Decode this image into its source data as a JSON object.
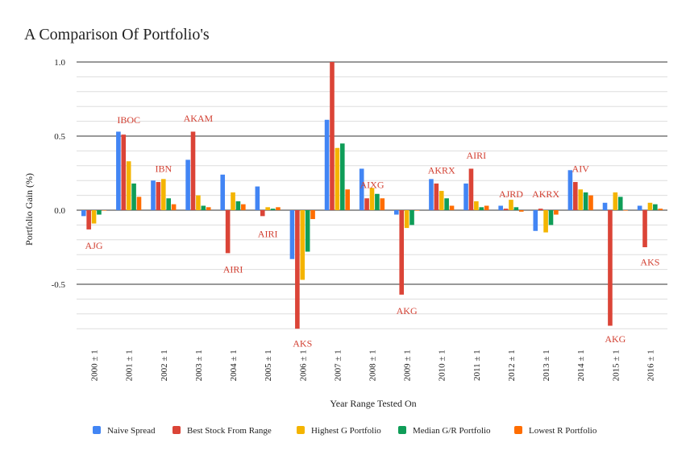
{
  "chart_data": {
    "type": "bar",
    "title": "A Comparison Of Portfolio's",
    "xlabel": "Year Range Tested On",
    "ylabel": "Portfolio Gain (%)",
    "ylim": [
      -0.8333,
      1.0
    ],
    "yticks": [
      1.0,
      0.5,
      0.0,
      -0.5
    ],
    "ytick_labels": [
      "1.0",
      "0.5",
      "0.0",
      "-0.5"
    ],
    "minor_gridlines": 5,
    "legend_position": "bottom",
    "categories": [
      "2000 ± 1",
      "2001 ± 1",
      "2002 ± 1",
      "2003 ± 1",
      "2004 ± 1",
      "2005 ± 1",
      "2006 ± 1",
      "2007 ± 1",
      "2008 ± 1",
      "2009 ± 1",
      "2010 ± 1",
      "2011 ± 1",
      "2012 ± 1",
      "2013 ± 1",
      "2014 ± 1",
      "2015 ± 1",
      "2016 ± 1"
    ],
    "series": [
      {
        "name": "Naive Spread",
        "color": "#4285f4",
        "values": [
          -0.04,
          0.53,
          0.2,
          0.34,
          0.24,
          0.16,
          -0.33,
          0.61,
          0.28,
          -0.03,
          0.21,
          0.18,
          0.03,
          -0.14,
          0.27,
          0.05,
          0.03
        ]
      },
      {
        "name": "Best Stock From Range",
        "color": "#db4437",
        "values": [
          -0.13,
          0.51,
          0.19,
          0.53,
          -0.29,
          -0.04,
          -0.8,
          1.0,
          0.08,
          -0.57,
          0.18,
          0.28,
          0.01,
          0.01,
          0.19,
          -0.78,
          -0.25
        ]
      },
      {
        "name": "Highest G Portfolio",
        "color": "#f4b400",
        "values": [
          -0.09,
          0.33,
          0.21,
          0.1,
          0.12,
          0.02,
          -0.47,
          0.42,
          0.15,
          -0.12,
          0.13,
          0.06,
          0.07,
          -0.15,
          0.14,
          0.12,
          0.05
        ]
      },
      {
        "name": "Median G/R Portfolio",
        "color": "#0f9d58",
        "values": [
          -0.03,
          0.18,
          0.08,
          0.03,
          0.06,
          0.01,
          -0.28,
          0.45,
          0.11,
          -0.1,
          0.08,
          0.02,
          0.02,
          -0.1,
          0.12,
          0.09,
          0.04
        ]
      },
      {
        "name": "Lowest R Portfolio",
        "color": "#ff6d00",
        "values": [
          0.0,
          0.09,
          0.04,
          0.02,
          0.04,
          0.02,
          -0.06,
          0.14,
          0.08,
          0.0,
          0.03,
          0.03,
          -0.01,
          -0.03,
          0.1,
          0.0,
          0.01
        ]
      }
    ],
    "annotations": [
      {
        "text": "AJG",
        "category": 0,
        "value": -0.24
      },
      {
        "text": "IBOC",
        "category": 1,
        "value": 0.61
      },
      {
        "text": "IBN",
        "category": 2,
        "value": 0.28
      },
      {
        "text": "AKAM",
        "category": 3,
        "value": 0.62
      },
      {
        "text": "AIRI",
        "category": 4,
        "value": -0.4
      },
      {
        "text": "AIRI",
        "category": 5,
        "value": -0.16
      },
      {
        "text": "AKS",
        "category": 6,
        "value": -0.9
      },
      {
        "text": "AIXG",
        "category": 8,
        "value": 0.17
      },
      {
        "text": "AKG",
        "category": 9,
        "value": -0.68
      },
      {
        "text": "AKRX",
        "category": 10,
        "value": 0.27
      },
      {
        "text": "AIRI",
        "category": 11,
        "value": 0.37
      },
      {
        "text": "AJRD",
        "category": 12,
        "value": 0.11
      },
      {
        "text": "AKRX",
        "category": 13,
        "value": 0.11
      },
      {
        "text": "AIV",
        "category": 14,
        "value": 0.28
      },
      {
        "text": "AKG",
        "category": 15,
        "value": -0.87
      },
      {
        "text": "AKS",
        "category": 16,
        "value": -0.35
      }
    ]
  }
}
